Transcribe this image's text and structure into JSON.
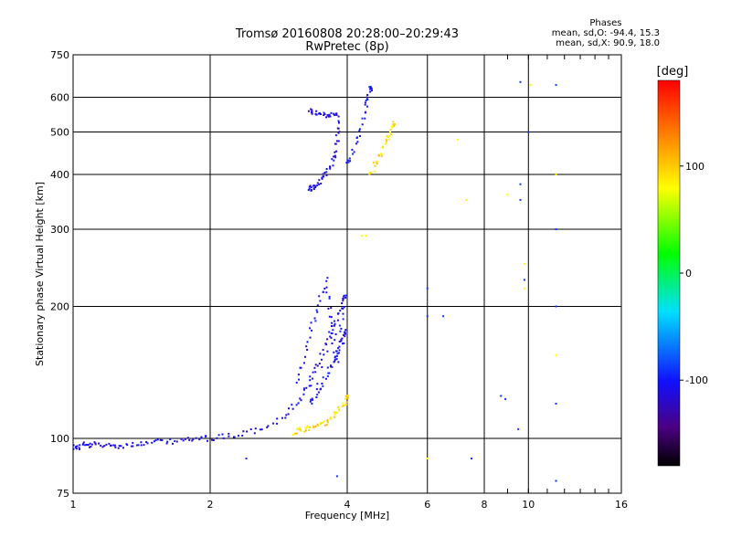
{
  "title": "Tromsø 20160808 20:28:00–20:29:43",
  "subtitle": "RwPretec (8p)",
  "phases": {
    "title": "Phases",
    "line_o": "mean, sd,O: -94.4, 15.3",
    "line_x": "mean, sd,X:  90.9, 18.0"
  },
  "colorbar": {
    "label": "[deg]",
    "ticks": [
      "100",
      "0",
      "-100"
    ],
    "tick_values": [
      100,
      0,
      -100
    ],
    "range": [
      -180,
      180
    ]
  },
  "chart_data": {
    "type": "scatter",
    "xlabel": "Frequency [MHz]",
    "ylabel": "Stationary phase Virtual Height [km]",
    "x_scale": "log2",
    "y_scale": "log",
    "xlim": [
      1,
      16
    ],
    "ylim": [
      75,
      750
    ],
    "x_ticks": [
      1,
      2,
      4,
      6,
      8,
      10,
      16
    ],
    "x_tick_labels": [
      "1",
      "2",
      "4",
      "6",
      "8",
      "10",
      "16"
    ],
    "y_ticks": [
      75,
      100,
      200,
      300,
      400,
      500,
      600,
      750
    ],
    "y_tick_labels": [
      "75",
      "100",
      "200",
      "300",
      "400",
      "500",
      "600",
      "750"
    ],
    "grid": true,
    "color_encodes": "phase [deg]",
    "traces": [
      {
        "kind": "o-mode-low",
        "phase": -110,
        "points": [
          [
            1.0,
            96
          ],
          [
            1.02,
            95
          ],
          [
            1.05,
            97
          ],
          [
            1.08,
            96
          ],
          [
            1.12,
            97
          ],
          [
            1.17,
            96
          ],
          [
            1.22,
            97
          ],
          [
            1.28,
            96
          ],
          [
            1.35,
            97
          ],
          [
            1.42,
            97
          ],
          [
            1.5,
            98
          ],
          [
            1.6,
            98
          ],
          [
            1.7,
            99
          ],
          [
            1.8,
            99
          ],
          [
            1.9,
            100
          ],
          [
            2.0,
            100
          ],
          [
            2.15,
            101
          ],
          [
            2.3,
            102
          ],
          [
            2.5,
            104
          ],
          [
            2.7,
            107
          ],
          [
            2.9,
            112
          ],
          [
            3.05,
            118
          ],
          [
            3.2,
            126
          ],
          [
            3.3,
            133
          ],
          [
            3.4,
            142
          ],
          [
            3.5,
            152
          ],
          [
            3.6,
            164
          ],
          [
            3.7,
            176
          ],
          [
            3.8,
            188
          ],
          [
            3.9,
            200
          ],
          [
            3.95,
            210
          ]
        ]
      },
      {
        "kind": "o-mode-spread",
        "phase": -105,
        "points": [
          [
            3.1,
            135
          ],
          [
            3.2,
            150
          ],
          [
            3.3,
            170
          ],
          [
            3.4,
            190
          ],
          [
            3.5,
            210
          ],
          [
            3.6,
            230
          ],
          [
            3.65,
            200
          ],
          [
            3.7,
            180
          ],
          [
            3.75,
            160
          ],
          [
            3.8,
            150
          ],
          [
            3.85,
            170
          ],
          [
            3.9,
            190
          ],
          [
            3.3,
            120
          ],
          [
            3.4,
            125
          ],
          [
            3.5,
            130
          ],
          [
            3.6,
            140
          ],
          [
            3.7,
            145
          ],
          [
            3.8,
            155
          ],
          [
            3.9,
            165
          ],
          [
            3.95,
            175
          ]
        ]
      },
      {
        "kind": "x-mode-low",
        "phase": 95,
        "points": [
          [
            3.05,
            103
          ],
          [
            3.15,
            104
          ],
          [
            3.25,
            105
          ],
          [
            3.35,
            106
          ],
          [
            3.45,
            107
          ],
          [
            3.55,
            108
          ],
          [
            3.65,
            110
          ],
          [
            3.75,
            113
          ],
          [
            3.85,
            117
          ],
          [
            3.95,
            121
          ],
          [
            4.0,
            125
          ]
        ]
      },
      {
        "kind": "o-mode-f2",
        "phase": -110,
        "points": [
          [
            3.3,
            560
          ],
          [
            3.35,
            555
          ],
          [
            3.45,
            550
          ],
          [
            3.55,
            545
          ],
          [
            3.65,
            548
          ],
          [
            3.75,
            552
          ],
          [
            3.8,
            540
          ],
          [
            3.82,
            500
          ],
          [
            3.8,
            470
          ],
          [
            3.75,
            440
          ],
          [
            3.68,
            420
          ],
          [
            3.6,
            405
          ],
          [
            3.52,
            392
          ],
          [
            3.45,
            382
          ],
          [
            3.38,
            375
          ],
          [
            3.32,
            370
          ]
        ]
      },
      {
        "kind": "o-mode-f2-upper",
        "phase": -100,
        "points": [
          [
            4.0,
            420
          ],
          [
            4.1,
            440
          ],
          [
            4.2,
            480
          ],
          [
            4.3,
            520
          ],
          [
            4.4,
            570
          ],
          [
            4.45,
            600
          ],
          [
            4.5,
            625
          ]
        ]
      },
      {
        "kind": "x-mode-f2",
        "phase": 90,
        "points": [
          [
            4.5,
            400
          ],
          [
            4.6,
            420
          ],
          [
            4.7,
            440
          ],
          [
            4.8,
            460
          ],
          [
            4.9,
            480
          ],
          [
            5.0,
            500
          ],
          [
            5.05,
            520
          ]
        ]
      },
      {
        "kind": "scatter",
        "phase": -90,
        "points": [
          [
            9.6,
            650
          ],
          [
            9.6,
            380
          ],
          [
            9.6,
            350
          ],
          [
            9.8,
            230
          ],
          [
            10.0,
            500
          ],
          [
            11.5,
            640
          ],
          [
            11.5,
            300
          ],
          [
            11.5,
            200
          ],
          [
            8.7,
            125
          ],
          [
            8.9,
            123
          ],
          [
            9.5,
            105
          ],
          [
            11.5,
            120
          ],
          [
            11.5,
            80
          ],
          [
            6.0,
            220
          ],
          [
            6.0,
            190
          ],
          [
            6.5,
            190
          ],
          [
            7.5,
            90
          ],
          [
            3.8,
            82
          ],
          [
            2.4,
            90
          ]
        ]
      },
      {
        "kind": "scatter-x",
        "phase": 80,
        "points": [
          [
            9.0,
            360
          ],
          [
            9.8,
            250
          ],
          [
            9.8,
            220
          ],
          [
            10.1,
            640
          ],
          [
            11.5,
            400
          ],
          [
            11.5,
            155
          ],
          [
            6.0,
            90
          ],
          [
            7.0,
            480
          ],
          [
            7.3,
            350
          ],
          [
            4.3,
            290
          ],
          [
            4.4,
            290
          ]
        ]
      }
    ]
  }
}
